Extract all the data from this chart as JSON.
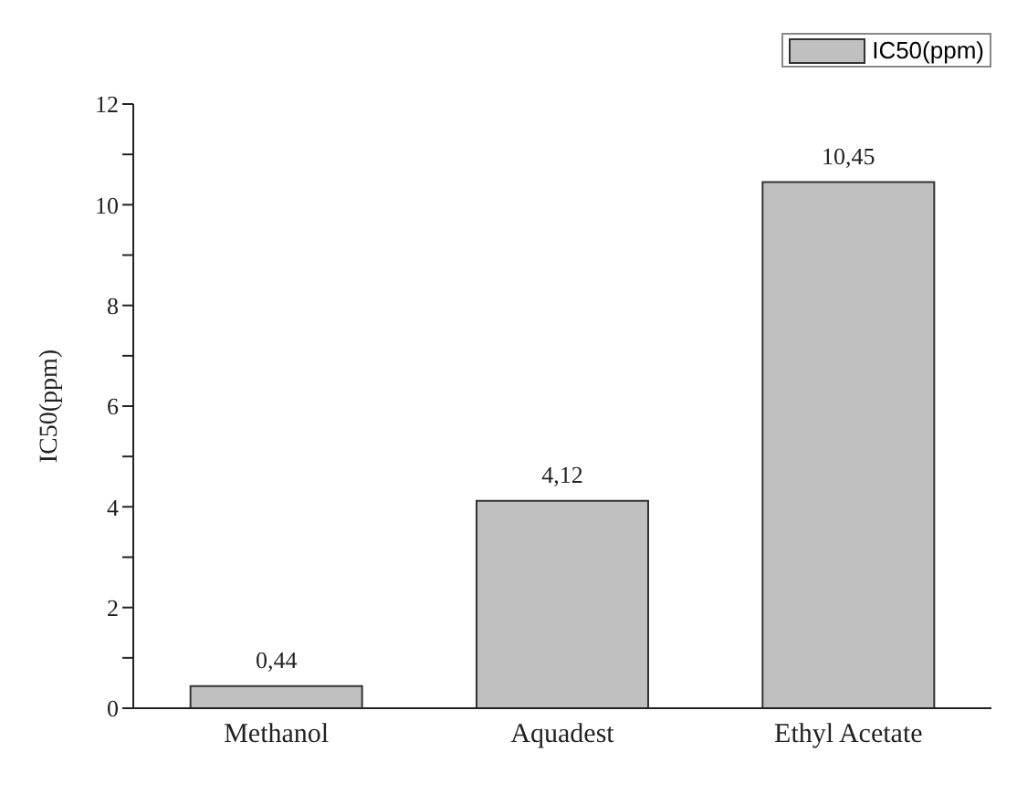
{
  "chart_data": {
    "type": "bar",
    "ylabel": "IC50(ppm)",
    "categories": [
      "Methanol",
      "Aquadest",
      "Ethyl Acetate"
    ],
    "series": [
      {
        "name": "IC50(ppm)",
        "color": "#c0c0c0",
        "values": [
          0.44,
          4.12,
          10.45
        ],
        "value_labels": [
          "0,44",
          "4,12",
          "10,45"
        ]
      }
    ],
    "ylim": [
      0,
      12
    ],
    "yticks": [
      0,
      {
        "value": 1,
        "label": null
      },
      2,
      {
        "value": 3,
        "label": null
      },
      4,
      {
        "value": 5,
        "label": null
      },
      6,
      {
        "value": 7,
        "label": null
      },
      8,
      {
        "value": 9,
        "label": null
      },
      10,
      {
        "value": 11,
        "label": null
      },
      12
    ],
    "legend": "top right"
  }
}
